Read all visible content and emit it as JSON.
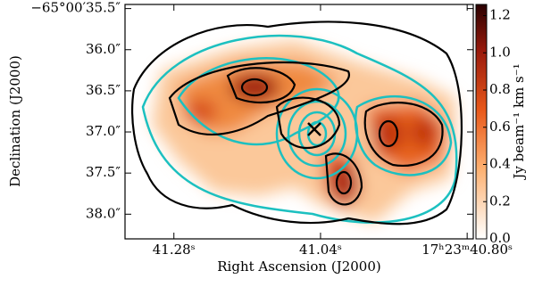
{
  "chart_data": {
    "type": "image",
    "xlabel": "Right Ascension (J2000)",
    "ylabel": "Declination (J2000)",
    "colorbar_label": "Jy beam⁻¹ km s⁻¹",
    "xlim": [
      41.36,
      40.79
    ],
    "xticks": [
      {
        "value": 41.28,
        "label": "41.28ˢ"
      },
      {
        "value": 41.04,
        "label": "41.04ˢ"
      },
      {
        "value": 40.8,
        "label": "17ʰ23ᵐ40.80ˢ"
      }
    ],
    "ylim": [
      35.45,
      38.3
    ],
    "yticks": [
      {
        "value": 35.5,
        "label": "−65°00′35.5″"
      },
      {
        "value": 36.0,
        "label": "36.0″"
      },
      {
        "value": 36.5,
        "label": "36.5″"
      },
      {
        "value": 37.0,
        "label": "37.0″"
      },
      {
        "value": 37.5,
        "label": "37.5″"
      },
      {
        "value": 38.0,
        "label": "38.0″"
      }
    ],
    "clim": [
      0,
      1.26
    ],
    "cticks": [
      {
        "value": 0,
        "label": "0.0"
      },
      0.2,
      0.4,
      0.6,
      0.8,
      {
        "value": 1,
        "label": "1.0"
      },
      1.2
    ]
  }
}
